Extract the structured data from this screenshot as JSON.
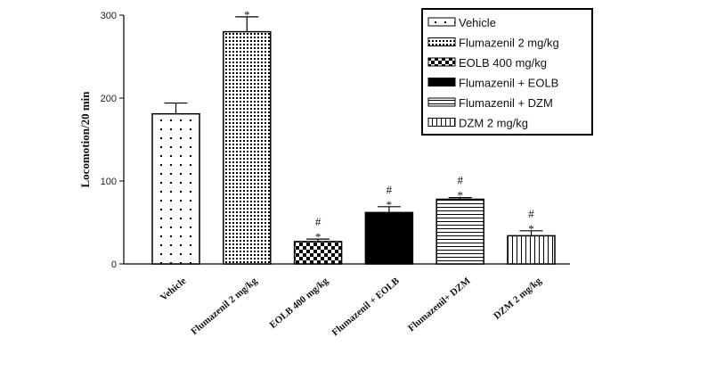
{
  "chart_data": {
    "type": "bar",
    "title": "",
    "xlabel": "",
    "ylabel": "Locomotion/20 min",
    "ylim": [
      0,
      300
    ],
    "yticks": [
      0,
      100,
      200,
      300
    ],
    "grid": false,
    "legend_position": "top-right",
    "categories": [
      "Vehicle",
      "Flumazenil 2 mg/kg",
      "EOLB 400 mg/kg",
      "Flumazenil + EOLB",
      "Flumazenil+ DZM",
      "DZM 2 mg/kg"
    ],
    "legend": [
      "Vehicle",
      "Flumazenil 2 mg/kg",
      "EOLB 400 mg/kg",
      "Flumazenil + EOLB",
      "Flumazenil + DZM",
      "DZM 2 mg/kg"
    ],
    "patterns": [
      "sparse-dots",
      "dense-dots",
      "checker",
      "solid-black",
      "horizontal-lines",
      "vertical-lines"
    ],
    "values": [
      181,
      280,
      27,
      62,
      78,
      34
    ],
    "errors": [
      13,
      18,
      3,
      7,
      2,
      6
    ],
    "annotations": [
      [],
      [
        "*"
      ],
      [
        "#",
        "*"
      ],
      [
        "#",
        "*"
      ],
      [
        "#",
        "*"
      ],
      [
        "#",
        "*"
      ]
    ]
  }
}
